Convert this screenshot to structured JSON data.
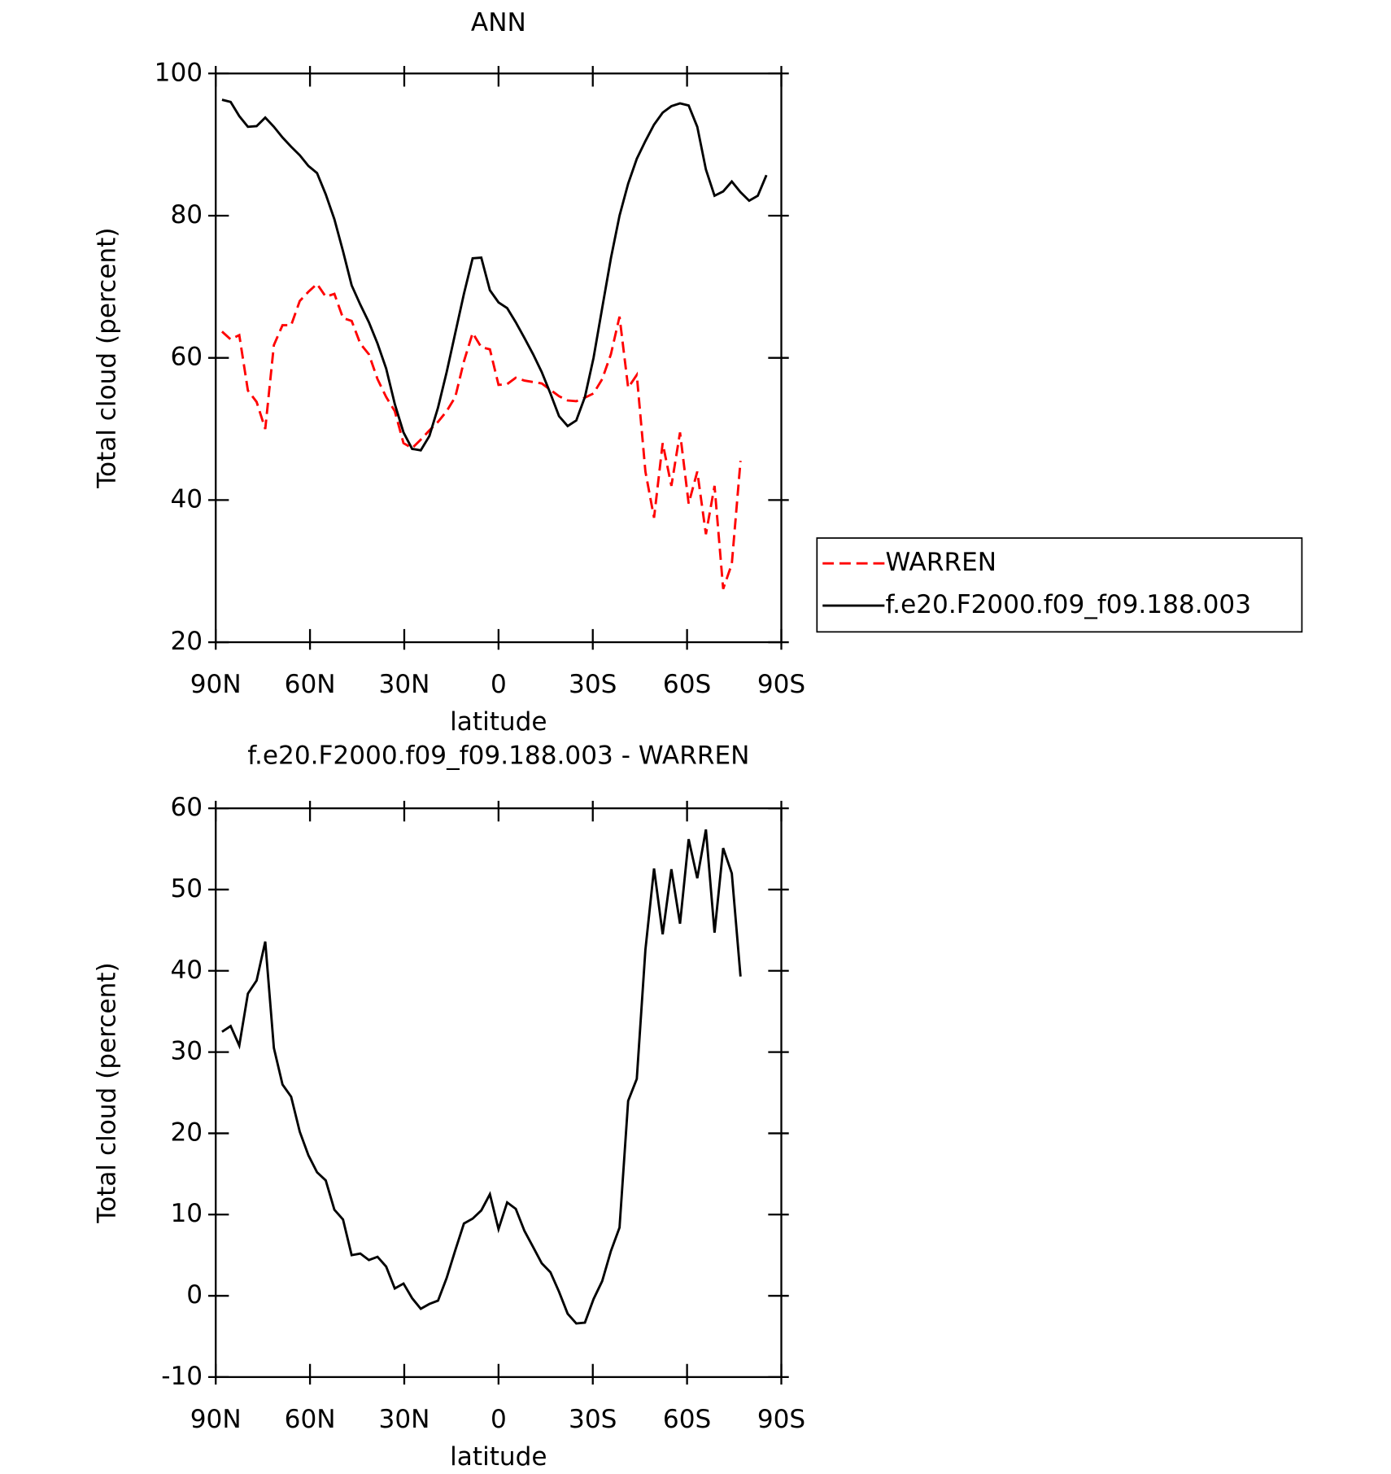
{
  "chart_data": [
    {
      "type": "line",
      "title": "ANN",
      "xlabel": "latitude",
      "ylabel": "Total cloud (percent)",
      "x": [
        88,
        85.25,
        82.5,
        79.75,
        77,
        74.25,
        71.5,
        68.75,
        66,
        63.25,
        60.5,
        57.75,
        55,
        52.25,
        49.5,
        46.75,
        44,
        41.25,
        38.5,
        35.75,
        33,
        30.25,
        27.5,
        24.75,
        22,
        19.25,
        16.5,
        13.75,
        11,
        8.25,
        5.5,
        2.75,
        0,
        -2.75,
        -5.5,
        -8.25,
        -11,
        -13.75,
        -16.5,
        -19.25,
        -22,
        -24.75,
        -27.5,
        -30.25,
        -33,
        -35.75,
        -38.5,
        -41.25,
        -44,
        -46.75,
        -49.5,
        -52.25,
        -55,
        -57.75,
        -60.5,
        -63.25,
        -66,
        -68.75,
        -71.5,
        -74.25,
        -77,
        -79.75,
        -82.5,
        -85.25
      ],
      "series": [
        {
          "name": "WARREN",
          "color": "#ff0000",
          "dash": "dashed",
          "values": [
            63.7,
            62.6,
            63.2,
            55.4,
            53.8,
            50,
            61.8,
            64.6,
            64.6,
            68,
            69.3,
            70.4,
            68.6,
            69,
            65.6,
            65.2,
            62,
            60.5,
            57,
            54.5,
            52.5,
            48,
            47.3,
            48.5,
            49.8,
            51,
            52.5,
            54.5,
            59.5,
            63.5,
            61.5,
            61.2,
            56.2,
            56.3,
            57.2,
            56.8,
            56.6,
            56.4,
            55.5,
            54.6,
            54,
            53.9,
            54.4,
            55,
            57,
            60.5,
            65.8,
            55.8,
            57.6,
            44,
            37.5,
            48,
            42,
            49.5,
            39.5,
            44,
            35.2,
            42,
            27.5,
            31,
            45.5,
            null,
            null,
            null
          ]
        },
        {
          "name": "f.e20.F2000.f09_f09.188.003",
          "color": "#000000",
          "dash": "solid",
          "values": [
            96.3,
            96,
            94,
            92.5,
            92.6,
            93.8,
            92.5,
            91,
            89.7,
            88.5,
            87,
            86,
            83,
            79.5,
            75,
            70.2,
            67.5,
            65,
            62,
            58.5,
            53.5,
            49.5,
            47.2,
            47,
            49,
            53,
            58,
            63.5,
            69,
            74,
            74.1,
            69.5,
            67.8,
            67,
            65,
            62.8,
            60.5,
            58,
            55,
            51.8,
            50.4,
            51.2,
            54.5,
            60,
            67,
            74,
            80,
            84.5,
            88,
            90.5,
            92.8,
            94.5,
            95.4,
            95.8,
            95.5,
            92.5,
            86.5,
            82.8,
            83.4,
            84.8,
            83.3,
            82.1,
            82.8,
            85.7
          ]
        }
      ],
      "xlim": [
        90,
        -90
      ],
      "xticks": [
        {
          "value": 90,
          "label": "90N"
        },
        {
          "value": 60,
          "label": "60N"
        },
        {
          "value": 30,
          "label": "30N"
        },
        0,
        {
          "value": -30,
          "label": "30S"
        },
        {
          "value": -60,
          "label": "60S"
        },
        {
          "value": -90,
          "label": "90S"
        }
      ],
      "ylim": [
        20,
        100
      ],
      "yticks": [
        20,
        40,
        60,
        80,
        100
      ],
      "legend": "right",
      "grid": false
    },
    {
      "type": "line",
      "title": "f.e20.F2000.f09_f09.188.003 - WARREN",
      "xlabel": "latitude",
      "ylabel": "Total cloud (percent)",
      "x": [
        88,
        85.25,
        82.5,
        79.75,
        77,
        74.25,
        71.5,
        68.75,
        66,
        63.25,
        60.5,
        57.75,
        55,
        52.25,
        49.5,
        46.75,
        44,
        41.25,
        38.5,
        35.75,
        33,
        30.25,
        27.5,
        24.75,
        22,
        19.25,
        16.5,
        13.75,
        11,
        8.25,
        5.5,
        2.75,
        0,
        -2.75,
        -5.5,
        -8.25,
        -11,
        -13.75,
        -16.5,
        -19.25,
        -22,
        -24.75,
        -27.5,
        -30.25,
        -33,
        -35.75,
        -38.5,
        -41.25,
        -44,
        -46.75,
        -49.5,
        -52.25,
        -55,
        -57.75,
        -60.5,
        -63.25,
        -66,
        -68.75,
        -71.5,
        -74.25,
        -77,
        -79.75,
        -82.5,
        -85.25
      ],
      "series": [
        {
          "color": "#000000",
          "dash": "solid",
          "values": [
            32.5,
            33.2,
            30.8,
            37.2,
            38.8,
            43.6,
            30.5,
            26,
            24.5,
            20.2,
            17.3,
            15.2,
            14.2,
            10.6,
            9.4,
            5,
            5.2,
            4.4,
            4.8,
            3.6,
            0.9,
            1.5,
            -0.3,
            -1.6,
            -1,
            -0.6,
            2.2,
            5.6,
            8.9,
            9.5,
            10.5,
            12.5,
            8.2,
            11.5,
            10.7,
            8,
            6,
            4,
            2.9,
            0.5,
            -2.2,
            -3.4,
            -3.3,
            -0.4,
            1.8,
            5.5,
            8.4,
            24,
            26.7,
            42.6,
            52.6,
            44.5,
            52.5,
            45.8,
            56.2,
            51.4,
            57.4,
            44.7,
            55.1,
            52,
            39.3,
            null,
            null,
            null
          ]
        }
      ],
      "xlim": [
        90,
        -90
      ],
      "xticks": [
        {
          "value": 90,
          "label": "90N"
        },
        {
          "value": 60,
          "label": "60N"
        },
        {
          "value": 30,
          "label": "30N"
        },
        0,
        {
          "value": -30,
          "label": "30S"
        },
        {
          "value": -60,
          "label": "60S"
        },
        {
          "value": -90,
          "label": "90S"
        }
      ],
      "ylim": [
        -10,
        60
      ],
      "yticks": [
        -10,
        0,
        10,
        20,
        30,
        40,
        50,
        60
      ],
      "grid": false
    }
  ]
}
